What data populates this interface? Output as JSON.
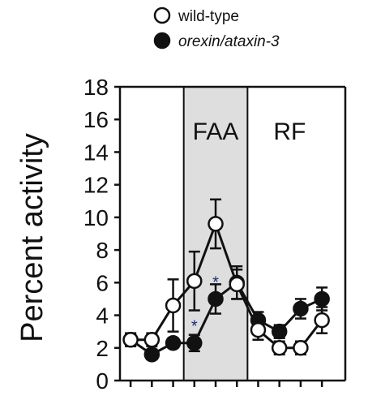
{
  "chart_data": {
    "type": "line",
    "ylabel": "Percent activity",
    "ylim": [
      0,
      18
    ],
    "y_ticks": [
      0,
      2,
      4,
      6,
      8,
      10,
      12,
      14,
      16,
      18
    ],
    "x_tick_count": 10,
    "shaded_region_label": "FAA",
    "region_label_right": "RF",
    "legend_placement": "top",
    "colors": {
      "background": "#ffffff",
      "shaded_region": "#dedede",
      "axis": "#111111"
    },
    "series": [
      {
        "name": "wild-type",
        "marker": "open-circle",
        "points": [
          {
            "x": 1,
            "y": 2.5,
            "err": 0.4
          },
          {
            "x": 2,
            "y": 2.5,
            "err": 0.4
          },
          {
            "x": 3,
            "y": 4.6,
            "err": 1.6
          },
          {
            "x": 4,
            "y": 6.1,
            "err": 1.8
          },
          {
            "x": 5,
            "y": 9.6,
            "err": 1.5
          },
          {
            "x": 6,
            "y": 5.9,
            "err": 0.9
          },
          {
            "x": 7,
            "y": 3.1,
            "err": 0.6
          },
          {
            "x": 8,
            "y": 2.0,
            "err": 0.4
          },
          {
            "x": 9,
            "y": 2.0,
            "err": 0.4
          },
          {
            "x": 10,
            "y": 3.7,
            "err": 0.8
          }
        ]
      },
      {
        "name": "orexin/ataxin-3",
        "marker": "filled-circle",
        "points": [
          {
            "x": 1,
            "y": 2.5,
            "err": 0.4
          },
          {
            "x": 2,
            "y": 1.6,
            "err": 0.3
          },
          {
            "x": 3,
            "y": 2.3,
            "err": 0.3
          },
          {
            "x": 4,
            "y": 2.3,
            "err": 0.5
          },
          {
            "x": 5,
            "y": 5.0,
            "err": 0.9
          },
          {
            "x": 6,
            "y": 6.0,
            "err": 1.0
          },
          {
            "x": 7,
            "y": 3.7,
            "err": 0.5
          },
          {
            "x": 8,
            "y": 3.0,
            "err": 0.4
          },
          {
            "x": 9,
            "y": 4.4,
            "err": 0.6
          },
          {
            "x": 10,
            "y": 5.0,
            "err": 0.7
          }
        ]
      }
    ],
    "significance": [
      {
        "x": 4,
        "y": 3.4,
        "text": "*"
      },
      {
        "x": 5,
        "y": 6.1,
        "text": "*"
      }
    ],
    "shaded_x_range": [
      3.5,
      6.5
    ],
    "x_range": [
      0.5,
      11.1
    ]
  }
}
